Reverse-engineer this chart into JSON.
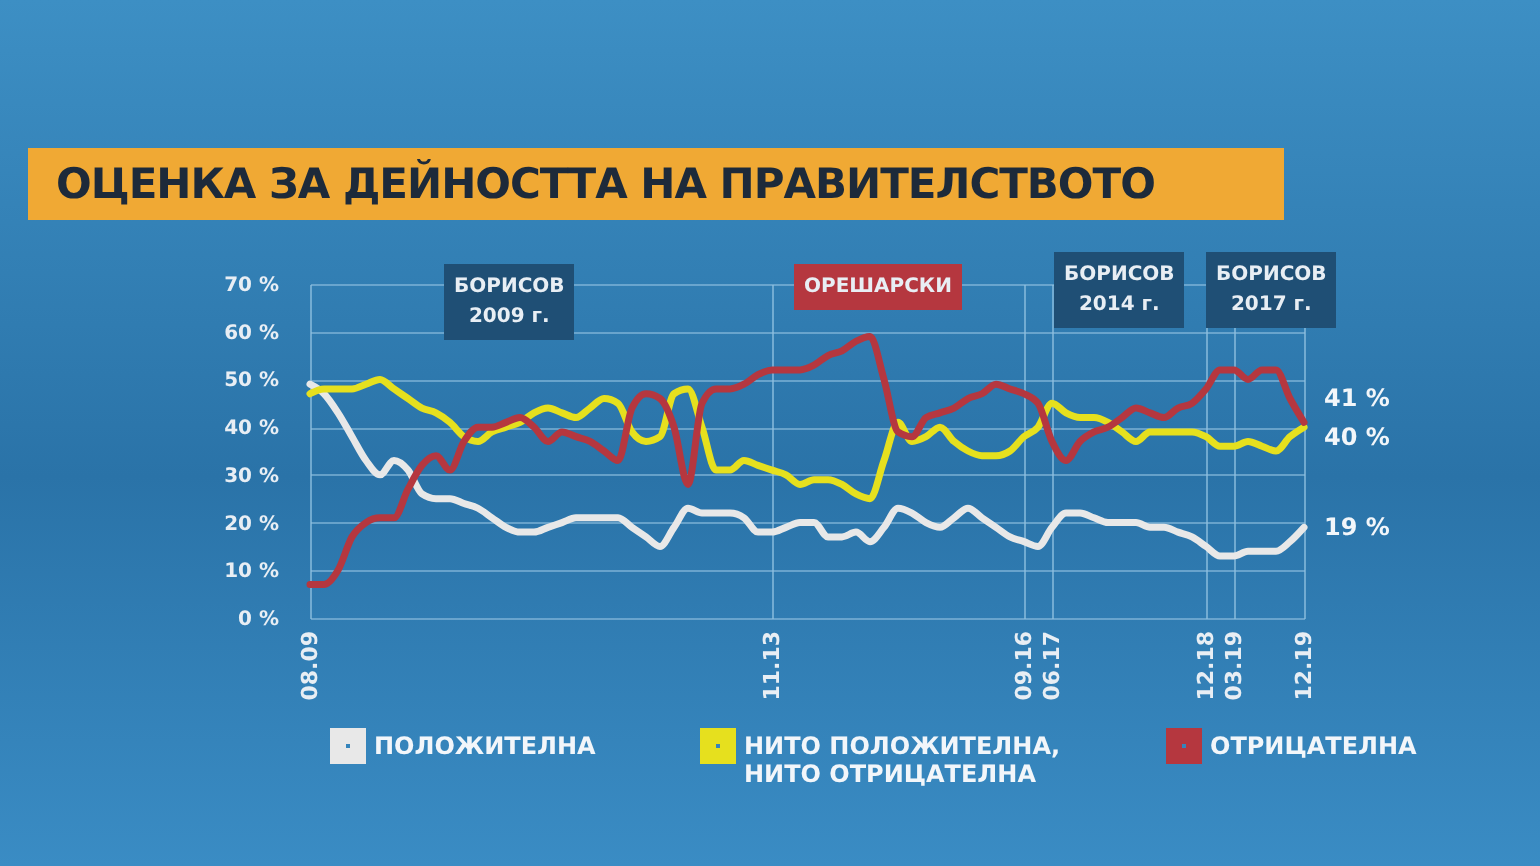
{
  "chart_data": {
    "type": "line",
    "title": "ОЦЕНКА ЗА ДЕЙНОСТТА НА ПРАВИТЕЛСТВОТО",
    "annotations": [
      "БОРИСОВ\n2009 г.",
      "ОРЕШАРСКИ",
      "БОРИСОВ\n2014 г.",
      "БОРИСОВ\n2017 г."
    ],
    "categories": [
      "08.09",
      null,
      null,
      null,
      null,
      null,
      null,
      null,
      null,
      null,
      null,
      null,
      null,
      null,
      null,
      null,
      null,
      null,
      null,
      null,
      null,
      null,
      null,
      null,
      null,
      null,
      null,
      null,
      null,
      null,
      null,
      null,
      null,
      "11.13",
      null,
      null,
      null,
      null,
      null,
      null,
      null,
      null,
      null,
      null,
      null,
      null,
      null,
      null,
      null,
      null,
      null,
      "09.16",
      null,
      "06.17",
      null,
      null,
      null,
      null,
      null,
      null,
      null,
      null,
      null,
      null,
      "12.18",
      null,
      "03.19",
      null,
      null,
      null,
      null,
      "12.19"
    ],
    "series": [
      {
        "name": "ПОЛОЖИТЕЛНА",
        "color": "#e8e8e8",
        "values": [
          49,
          47,
          43,
          38,
          33,
          30,
          33,
          31,
          26,
          25,
          25,
          24,
          23,
          21,
          19,
          18,
          18,
          19,
          20,
          21,
          21,
          21,
          21,
          19,
          17,
          15,
          19,
          23,
          22,
          22,
          22,
          21,
          18,
          18,
          19,
          20,
          20,
          17,
          17,
          18,
          16,
          19,
          23,
          22,
          20,
          19,
          21,
          23,
          21,
          19,
          17,
          16,
          15,
          19,
          22,
          22,
          21,
          20,
          20,
          20,
          19,
          19,
          18,
          17,
          15,
          13,
          13,
          14,
          14,
          14,
          16,
          19
        ],
        "value_labels": [
          null,
          null,
          null,
          null,
          null,
          null,
          null,
          null,
          null,
          null,
          null,
          null,
          null,
          null,
          null,
          null,
          null,
          null,
          null,
          null,
          null,
          null,
          null,
          null,
          null,
          null,
          null,
          null,
          null,
          null,
          null,
          null,
          null,
          null,
          null,
          null,
          null,
          null,
          null,
          null,
          null,
          null,
          null,
          null,
          null,
          null,
          null,
          null,
          null,
          null,
          null,
          null,
          null,
          null,
          null,
          null,
          null,
          null,
          null,
          null,
          null,
          null,
          null,
          null,
          null,
          null,
          null,
          null,
          null,
          null,
          null,
          "19 %"
        ]
      },
      {
        "name": "НИТО ПОЛОЖИТЕЛНА,\nНИТО ОТРИЦАТЕЛНА",
        "color": "#e6e01e",
        "values": [
          47,
          48,
          48,
          48,
          49,
          50,
          48,
          46,
          44,
          43,
          41,
          38,
          37,
          39,
          40,
          41,
          43,
          44,
          43,
          42,
          44,
          46,
          45,
          39,
          37,
          38,
          47,
          48,
          40,
          31,
          31,
          33,
          32,
          31,
          30,
          28,
          29,
          29,
          28,
          26,
          25,
          33,
          41,
          37,
          38,
          40,
          37,
          35,
          34,
          34,
          35,
          38,
          40,
          45,
          43,
          42,
          42,
          41,
          39,
          37,
          39,
          39,
          39,
          39,
          38,
          36,
          36,
          37,
          36,
          35,
          38,
          40
        ],
        "value_labels": [
          null,
          null,
          null,
          null,
          null,
          null,
          null,
          null,
          null,
          null,
          null,
          null,
          null,
          null,
          null,
          null,
          null,
          null,
          null,
          null,
          null,
          null,
          null,
          null,
          null,
          null,
          null,
          null,
          null,
          null,
          null,
          null,
          null,
          null,
          null,
          null,
          null,
          null,
          null,
          null,
          null,
          null,
          null,
          null,
          null,
          null,
          null,
          null,
          null,
          null,
          null,
          null,
          null,
          null,
          null,
          null,
          null,
          null,
          null,
          null,
          null,
          null,
          null,
          null,
          null,
          null,
          null,
          null,
          null,
          null,
          null,
          "40 %"
        ]
      },
      {
        "name": "ОТРИЦАТЕЛНА",
        "color": "#b5373f",
        "values": [
          7,
          7,
          10,
          17,
          20,
          21,
          21,
          27,
          32,
          34,
          31,
          37,
          40,
          40,
          41,
          42,
          40,
          37,
          39,
          38,
          37,
          35,
          33,
          44,
          47,
          46,
          40,
          28,
          45,
          48,
          48,
          49,
          51,
          52,
          52,
          52,
          53,
          55,
          56,
          58,
          59,
          50,
          39,
          38,
          42,
          43,
          44,
          46,
          47,
          49,
          48,
          47,
          45,
          37,
          33,
          37,
          39,
          40,
          42,
          44,
          43,
          42,
          44,
          45,
          48,
          52,
          52,
          50,
          52,
          52,
          46,
          41
        ],
        "value_labels": [
          null,
          null,
          null,
          null,
          null,
          null,
          null,
          null,
          null,
          null,
          null,
          null,
          null,
          null,
          null,
          null,
          null,
          null,
          null,
          null,
          null,
          null,
          null,
          null,
          null,
          null,
          null,
          null,
          null,
          null,
          null,
          null,
          null,
          null,
          null,
          null,
          null,
          null,
          null,
          null,
          null,
          null,
          null,
          null,
          null,
          null,
          null,
          null,
          null,
          null,
          null,
          null,
          null,
          null,
          null,
          null,
          null,
          null,
          null,
          null,
          null,
          null,
          null,
          null,
          null,
          null,
          null,
          null,
          null,
          null,
          null,
          "41 %"
        ]
      }
    ],
    "ylim": [
      0,
      70
    ],
    "yticks": [
      {
        "value": 0,
        "label": "0 %"
      },
      {
        "value": 10,
        "label": "10 %"
      },
      {
        "value": 20,
        "label": "20 %"
      },
      {
        "value": 30,
        "label": "30 %"
      },
      {
        "value": 40,
        "label": "40 %"
      },
      {
        "value": 50,
        "label": "50 %"
      },
      {
        "value": 60,
        "label": "60 %"
      },
      {
        "value": 70,
        "label": "70 %"
      }
    ],
    "grid": true,
    "legend": "bottom"
  }
}
